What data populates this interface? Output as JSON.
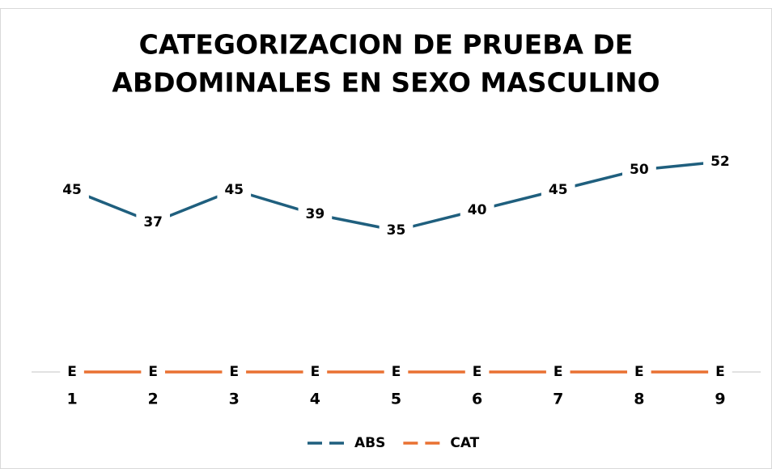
{
  "chart_data": {
    "type": "line",
    "title": [
      "CATEGORIZACION DE PRUEBA DE",
      "ABDOMINALES EN SEXO MASCULINO"
    ],
    "categories": [
      "1",
      "2",
      "3",
      "4",
      "5",
      "6",
      "7",
      "8",
      "9"
    ],
    "series": [
      {
        "name": "ABS",
        "color": "#1f5f7e",
        "values": [
          45,
          37,
          45,
          39,
          35,
          40,
          45,
          50,
          52
        ]
      },
      {
        "name": "CAT",
        "color": "#e97132",
        "values": [
          0,
          0,
          0,
          0,
          0,
          0,
          0,
          0,
          0
        ],
        "value_labels": [
          "E",
          "E",
          "E",
          "E",
          "E",
          "E",
          "E",
          "E",
          "E"
        ]
      }
    ],
    "ylim": [
      0,
      64
    ],
    "grid": false,
    "legend": "bottom"
  }
}
